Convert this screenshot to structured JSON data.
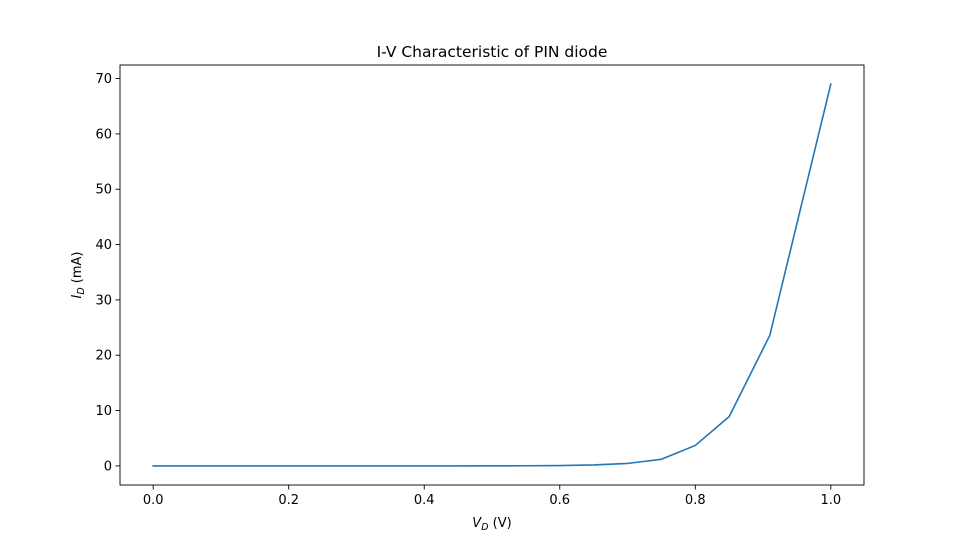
{
  "chart_data": {
    "type": "line",
    "title": "I-V Characteristic of PIN diode",
    "xlabel": {
      "main": "V",
      "sub": "D",
      "suffix": " (V)"
    },
    "ylabel": {
      "main": "I",
      "sub": "D",
      "suffix": " (mA)"
    },
    "xlim": [
      -0.049,
      1.049
    ],
    "ylim": [
      -3.45,
      72.45
    ],
    "x_ticks": [
      0.0,
      0.2,
      0.4,
      0.6,
      0.8,
      1.0
    ],
    "x_tick_labels": [
      "0.0",
      "0.2",
      "0.4",
      "0.6",
      "0.8",
      "1.0"
    ],
    "y_ticks": [
      0,
      10,
      20,
      30,
      40,
      50,
      60,
      70
    ],
    "y_tick_labels": [
      "0",
      "10",
      "20",
      "30",
      "40",
      "50",
      "60",
      "70"
    ],
    "grid": false,
    "series": [
      {
        "color": "#1f77b4",
        "x": [
          0.0,
          0.05,
          0.1,
          0.15,
          0.2,
          0.25,
          0.3,
          0.35,
          0.4,
          0.45,
          0.5,
          0.55,
          0.6,
          0.65,
          0.7,
          0.75,
          0.8,
          0.85,
          0.91,
          1.0
        ],
        "y": [
          0.0,
          0.0,
          0.0,
          0.0,
          0.0,
          0.0,
          0.0,
          0.0,
          0.0,
          0.0,
          0.01,
          0.03,
          0.07,
          0.18,
          0.45,
          1.2,
          3.7,
          8.9,
          23.6,
          69.0
        ]
      }
    ]
  }
}
